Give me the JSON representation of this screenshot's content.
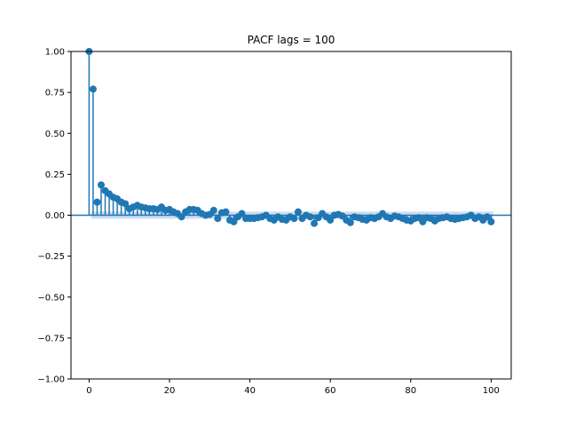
{
  "chart_data": {
    "type": "scatter",
    "subtype": "stem",
    "title": "PACF lags = 100",
    "xlabel": "",
    "ylabel": "",
    "xlim": [
      -4.5,
      105
    ],
    "ylim": [
      -1.0,
      1.0
    ],
    "xticks": [
      0,
      20,
      40,
      60,
      80,
      100
    ],
    "yticks": [
      -1.0,
      -0.75,
      -0.5,
      -0.25,
      0.0,
      0.25,
      0.5,
      0.75,
      1.0
    ],
    "xtick_labels": [
      "0",
      "20",
      "40",
      "60",
      "80",
      "100"
    ],
    "ytick_labels": [
      "−1.00",
      "−0.75",
      "−0.50",
      "−0.25",
      "0.00",
      "0.25",
      "0.50",
      "0.75",
      "1.00"
    ],
    "grid": false,
    "colors": {
      "series": "#1f77b4",
      "confidence_band": "#aec7e8",
      "axes": "#000000"
    },
    "confidence_interval": 0.022,
    "series": [
      {
        "lags": [
          0,
          1,
          2,
          3,
          4,
          5,
          6,
          7,
          8,
          9,
          10,
          11,
          12,
          13,
          14,
          15,
          16,
          17,
          18,
          19,
          20,
          21,
          22,
          23,
          24,
          25,
          26,
          27,
          28,
          29,
          30,
          31,
          32,
          33,
          34,
          35,
          36,
          37,
          38,
          39,
          40,
          41,
          42,
          43,
          44,
          45,
          46,
          47,
          48,
          49,
          50,
          51,
          52,
          53,
          54,
          55,
          56,
          57,
          58,
          59,
          60,
          61,
          62,
          63,
          64,
          65,
          66,
          67,
          68,
          69,
          70,
          71,
          72,
          73,
          74,
          75,
          76,
          77,
          78,
          79,
          80,
          81,
          82,
          83,
          84,
          85,
          86,
          87,
          88,
          89,
          90,
          91,
          92,
          93,
          94,
          95,
          96,
          97,
          98,
          99,
          100
        ],
        "values": [
          1.0,
          0.77,
          0.08,
          0.185,
          0.15,
          0.13,
          0.11,
          0.1,
          0.08,
          0.07,
          0.04,
          0.05,
          0.06,
          0.05,
          0.045,
          0.04,
          0.04,
          0.035,
          0.05,
          0.03,
          0.035,
          0.02,
          0.01,
          -0.01,
          0.02,
          0.035,
          0.035,
          0.03,
          0.01,
          0.0,
          0.005,
          0.03,
          -0.02,
          0.015,
          0.02,
          -0.03,
          -0.04,
          -0.01,
          0.01,
          -0.02,
          -0.02,
          -0.02,
          -0.015,
          -0.01,
          0.0,
          -0.02,
          -0.03,
          -0.01,
          -0.025,
          -0.03,
          -0.01,
          -0.02,
          0.02,
          -0.02,
          0.0,
          -0.01,
          -0.05,
          -0.015,
          0.01,
          -0.01,
          -0.03,
          0.0,
          0.005,
          -0.005,
          -0.03,
          -0.045,
          -0.01,
          -0.015,
          -0.025,
          -0.03,
          -0.015,
          -0.02,
          -0.01,
          0.01,
          -0.01,
          -0.02,
          -0.005,
          -0.01,
          -0.02,
          -0.03,
          -0.035,
          -0.02,
          -0.015,
          -0.04,
          -0.015,
          -0.02,
          -0.035,
          -0.02,
          -0.015,
          -0.01,
          -0.02,
          -0.025,
          -0.02,
          -0.015,
          -0.01,
          0.0,
          -0.02,
          -0.01,
          -0.03,
          -0.01,
          -0.04
        ]
      }
    ]
  }
}
